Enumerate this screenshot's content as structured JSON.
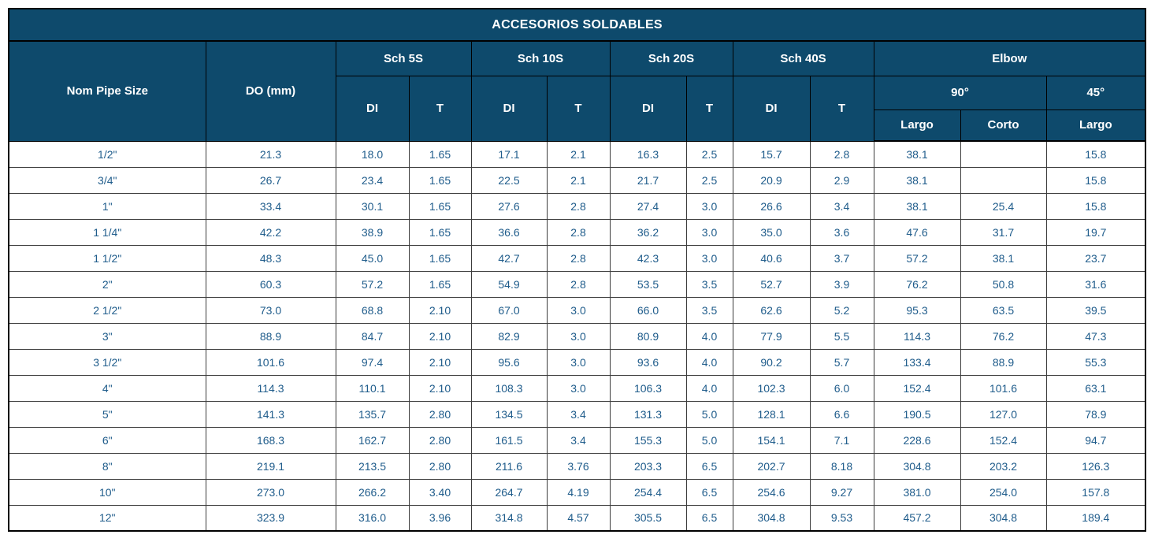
{
  "colors": {
    "header_bg": "#0e4a6c",
    "header_text": "#ffffff",
    "body_text": "#1f5c8b",
    "grid_line": "#3c3c3c",
    "outer_border": "#000000",
    "page_bg": "#ffffff"
  },
  "header": {
    "title": "ACCESORIOS SOLDABLES",
    "nom_pipe_size": "Nom Pipe Size",
    "do_mm": "DO (mm)",
    "sch_groups": [
      "Sch 5S",
      "Sch 10S",
      "Sch 20S",
      "Sch 40S"
    ],
    "di": "DI",
    "t": "T",
    "elbow": "Elbow",
    "deg_90": "90°",
    "deg_45": "45°",
    "largo": "Largo",
    "corto": "Corto"
  },
  "table": {
    "columns": [
      "Nom Pipe Size",
      "DO (mm)",
      "Sch 5S DI",
      "Sch 5S T",
      "Sch 10S DI",
      "Sch 10S T",
      "Sch 20S DI",
      "Sch 20S T",
      "Sch 40S DI",
      "Sch 40S T",
      "Elbow 90° Largo",
      "Elbow 90° Corto",
      "Elbow 45° Largo"
    ],
    "rows": [
      [
        "1/2\"",
        "21.3",
        "18.0",
        "1.65",
        "17.1",
        "2.1",
        "16.3",
        "2.5",
        "15.7",
        "2.8",
        "38.1",
        "",
        "15.8"
      ],
      [
        "3/4\"",
        "26.7",
        "23.4",
        "1.65",
        "22.5",
        "2.1",
        "21.7",
        "2.5",
        "20.9",
        "2.9",
        "38.1",
        "",
        "15.8"
      ],
      [
        "1\"",
        "33.4",
        "30.1",
        "1.65",
        "27.6",
        "2.8",
        "27.4",
        "3.0",
        "26.6",
        "3.4",
        "38.1",
        "25.4",
        "15.8"
      ],
      [
        "1 1/4\"",
        "42.2",
        "38.9",
        "1.65",
        "36.6",
        "2.8",
        "36.2",
        "3.0",
        "35.0",
        "3.6",
        "47.6",
        "31.7",
        "19.7"
      ],
      [
        "1 1/2\"",
        "48.3",
        "45.0",
        "1.65",
        "42.7",
        "2.8",
        "42.3",
        "3.0",
        "40.6",
        "3.7",
        "57.2",
        "38.1",
        "23.7"
      ],
      [
        "2\"",
        "60.3",
        "57.2",
        "1.65",
        "54.9",
        "2.8",
        "53.5",
        "3.5",
        "52.7",
        "3.9",
        "76.2",
        "50.8",
        "31.6"
      ],
      [
        "2 1/2\"",
        "73.0",
        "68.8",
        "2.10",
        "67.0",
        "3.0",
        "66.0",
        "3.5",
        "62.6",
        "5.2",
        "95.3",
        "63.5",
        "39.5"
      ],
      [
        "3\"",
        "88.9",
        "84.7",
        "2.10",
        "82.9",
        "3.0",
        "80.9",
        "4.0",
        "77.9",
        "5.5",
        "114.3",
        "76.2",
        "47.3"
      ],
      [
        "3 1/2\"",
        "101.6",
        "97.4",
        "2.10",
        "95.6",
        "3.0",
        "93.6",
        "4.0",
        "90.2",
        "5.7",
        "133.4",
        "88.9",
        "55.3"
      ],
      [
        "4\"",
        "114.3",
        "110.1",
        "2.10",
        "108.3",
        "3.0",
        "106.3",
        "4.0",
        "102.3",
        "6.0",
        "152.4",
        "101.6",
        "63.1"
      ],
      [
        "5\"",
        "141.3",
        "135.7",
        "2.80",
        "134.5",
        "3.4",
        "131.3",
        "5.0",
        "128.1",
        "6.6",
        "190.5",
        "127.0",
        "78.9"
      ],
      [
        "6\"",
        "168.3",
        "162.7",
        "2.80",
        "161.5",
        "3.4",
        "155.3",
        "5.0",
        "154.1",
        "7.1",
        "228.6",
        "152.4",
        "94.7"
      ],
      [
        "8\"",
        "219.1",
        "213.5",
        "2.80",
        "211.6",
        "3.76",
        "203.3",
        "6.5",
        "202.7",
        "8.18",
        "304.8",
        "203.2",
        "126.3"
      ],
      [
        "10\"",
        "273.0",
        "266.2",
        "3.40",
        "264.7",
        "4.19",
        "254.4",
        "6.5",
        "254.6",
        "9.27",
        "381.0",
        "254.0",
        "157.8"
      ],
      [
        "12\"",
        "323.9",
        "316.0",
        "3.96",
        "314.8",
        "4.57",
        "305.5",
        "6.5",
        "304.8",
        "9.53",
        "457.2",
        "304.8",
        "189.4"
      ]
    ]
  }
}
